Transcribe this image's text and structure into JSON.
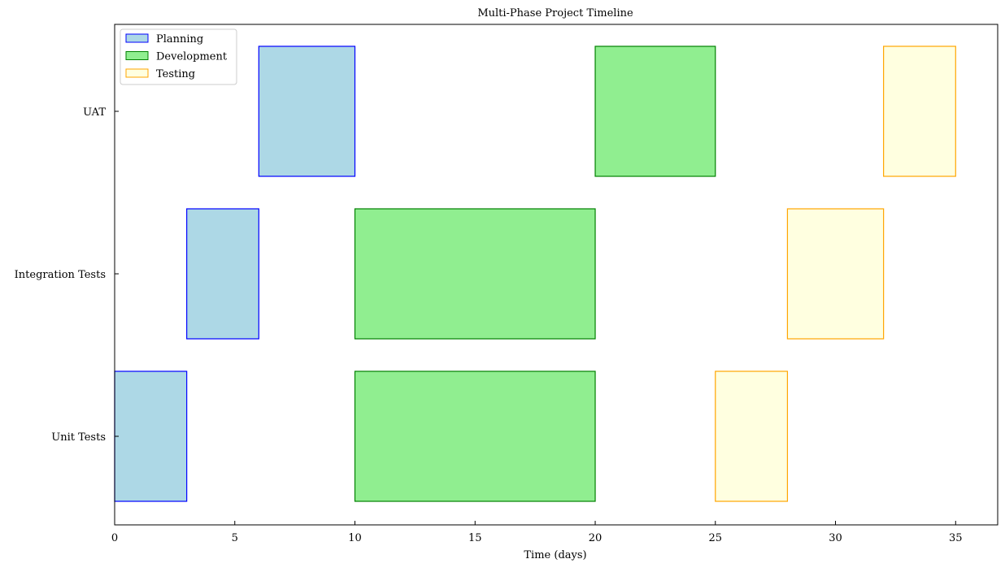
{
  "chart_data": {
    "type": "bar",
    "orientation": "horizontal",
    "title": "Multi-Phase Project Timeline",
    "xlabel": "Time (days)",
    "ylabel": "",
    "xlim": [
      0,
      36.75
    ],
    "xticks": [
      0,
      5,
      10,
      15,
      20,
      25,
      30,
      35
    ],
    "categories": [
      "Unit Tests",
      "Integration Tests",
      "UAT"
    ],
    "grid": false,
    "legend_position": "top-left",
    "series": [
      {
        "name": "Planning",
        "fill": "#add8e6",
        "edge": "#0000ff",
        "bars": [
          {
            "category": "Unit Tests",
            "start": 0,
            "end": 3
          },
          {
            "category": "Integration Tests",
            "start": 3,
            "end": 6
          },
          {
            "category": "UAT",
            "start": 6,
            "end": 10
          }
        ]
      },
      {
        "name": "Development",
        "fill": "#90ee90",
        "edge": "#008000",
        "bars": [
          {
            "category": "Unit Tests",
            "start": 10,
            "end": 20
          },
          {
            "category": "Integration Tests",
            "start": 10,
            "end": 20
          },
          {
            "category": "UAT",
            "start": 20,
            "end": 25
          }
        ]
      },
      {
        "name": "Testing",
        "fill": "#ffffe0",
        "edge": "#ffa500",
        "bars": [
          {
            "category": "Unit Tests",
            "start": 25,
            "end": 28
          },
          {
            "category": "Integration Tests",
            "start": 28,
            "end": 32
          },
          {
            "category": "UAT",
            "start": 32,
            "end": 35
          }
        ]
      }
    ]
  }
}
